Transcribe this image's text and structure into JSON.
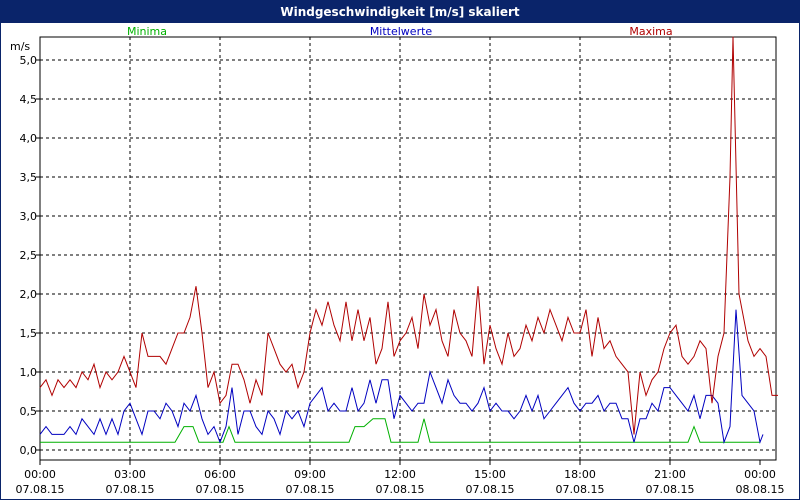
{
  "chart_data": {
    "type": "line",
    "title": "Windgeschwindigkeit [m/s] skaliert",
    "y_unit_label": "m/s",
    "ylim": [
      -0.1,
      5.5
    ],
    "y_ticks": [
      "0,0",
      "0,5",
      "1,0",
      "1,5",
      "2,0",
      "2,5",
      "3,0",
      "3,5",
      "4,0",
      "4,5",
      "5,0"
    ],
    "y_tick_values": [
      0.0,
      0.5,
      1.0,
      1.5,
      2.0,
      2.5,
      3.0,
      3.5,
      4.0,
      4.5,
      5.0
    ],
    "x_range_hours": [
      0,
      24
    ],
    "x_ticks": [
      {
        "hour": 0,
        "time": "00:00",
        "date": "07.08.15"
      },
      {
        "hour": 3,
        "time": "03:00",
        "date": "07.08.15"
      },
      {
        "hour": 6,
        "time": "06:00",
        "date": "07.08.15"
      },
      {
        "hour": 9,
        "time": "09:00",
        "date": "07.08.15"
      },
      {
        "hour": 12,
        "time": "12:00",
        "date": "07.08.15"
      },
      {
        "hour": 15,
        "time": "15:00",
        "date": "07.08.15"
      },
      {
        "hour": 18,
        "time": "18:00",
        "date": "07.08.15"
      },
      {
        "hour": 21,
        "time": "21:00",
        "date": "07.08.15"
      },
      {
        "hour": 24,
        "time": "00:00",
        "date": "08.08.15"
      }
    ],
    "grid": true,
    "series": [
      {
        "name": "Minima",
        "color": "#00b000",
        "points": [
          [
            0,
            0.1
          ],
          [
            4.5,
            0.1
          ],
          [
            4.8,
            0.3
          ],
          [
            5.1,
            0.3
          ],
          [
            5.3,
            0.1
          ],
          [
            6.1,
            0.1
          ],
          [
            6.3,
            0.3
          ],
          [
            6.5,
            0.1
          ],
          [
            10.3,
            0.1
          ],
          [
            10.5,
            0.3
          ],
          [
            10.8,
            0.3
          ],
          [
            11.1,
            0.4
          ],
          [
            11.5,
            0.4
          ],
          [
            11.7,
            0.1
          ],
          [
            12.6,
            0.1
          ],
          [
            12.8,
            0.4
          ],
          [
            13.0,
            0.1
          ],
          [
            21.6,
            0.1
          ],
          [
            21.8,
            0.3
          ],
          [
            22.0,
            0.1
          ],
          [
            24,
            0.1
          ]
        ]
      },
      {
        "name": "Mittelwerte",
        "color": "#0000c0",
        "points": [
          [
            0,
            0.2
          ],
          [
            0.2,
            0.3
          ],
          [
            0.4,
            0.2
          ],
          [
            0.6,
            0.2
          ],
          [
            0.8,
            0.2
          ],
          [
            1.0,
            0.3
          ],
          [
            1.2,
            0.2
          ],
          [
            1.4,
            0.4
          ],
          [
            1.6,
            0.3
          ],
          [
            1.8,
            0.2
          ],
          [
            2.0,
            0.4
          ],
          [
            2.2,
            0.2
          ],
          [
            2.4,
            0.4
          ],
          [
            2.6,
            0.2
          ],
          [
            2.8,
            0.5
          ],
          [
            3.0,
            0.6
          ],
          [
            3.2,
            0.4
          ],
          [
            3.4,
            0.2
          ],
          [
            3.6,
            0.5
          ],
          [
            3.8,
            0.5
          ],
          [
            4.0,
            0.4
          ],
          [
            4.2,
            0.6
          ],
          [
            4.4,
            0.5
          ],
          [
            4.6,
            0.3
          ],
          [
            4.8,
            0.6
          ],
          [
            5.0,
            0.5
          ],
          [
            5.2,
            0.7
          ],
          [
            5.4,
            0.4
          ],
          [
            5.6,
            0.2
          ],
          [
            5.8,
            0.3
          ],
          [
            6.0,
            0.1
          ],
          [
            6.2,
            0.3
          ],
          [
            6.4,
            0.8
          ],
          [
            6.6,
            0.2
          ],
          [
            6.8,
            0.5
          ],
          [
            7.0,
            0.5
          ],
          [
            7.2,
            0.3
          ],
          [
            7.4,
            0.2
          ],
          [
            7.6,
            0.5
          ],
          [
            7.8,
            0.4
          ],
          [
            8.0,
            0.2
          ],
          [
            8.2,
            0.5
          ],
          [
            8.4,
            0.4
          ],
          [
            8.6,
            0.5
          ],
          [
            8.8,
            0.3
          ],
          [
            9.0,
            0.6
          ],
          [
            9.2,
            0.7
          ],
          [
            9.4,
            0.8
          ],
          [
            9.6,
            0.5
          ],
          [
            9.8,
            0.6
          ],
          [
            10.0,
            0.5
          ],
          [
            10.2,
            0.5
          ],
          [
            10.4,
            0.8
          ],
          [
            10.6,
            0.5
          ],
          [
            10.8,
            0.6
          ],
          [
            11.0,
            0.9
          ],
          [
            11.2,
            0.6
          ],
          [
            11.4,
            0.9
          ],
          [
            11.6,
            0.9
          ],
          [
            11.8,
            0.4
          ],
          [
            12.0,
            0.7
          ],
          [
            12.2,
            0.6
          ],
          [
            12.4,
            0.5
          ],
          [
            12.6,
            0.6
          ],
          [
            12.8,
            0.6
          ],
          [
            13.0,
            1.0
          ],
          [
            13.2,
            0.8
          ],
          [
            13.4,
            0.6
          ],
          [
            13.6,
            0.9
          ],
          [
            13.8,
            0.7
          ],
          [
            14.0,
            0.6
          ],
          [
            14.2,
            0.6
          ],
          [
            14.4,
            0.5
          ],
          [
            14.6,
            0.6
          ],
          [
            14.8,
            0.8
          ],
          [
            15.0,
            0.5
          ],
          [
            15.2,
            0.6
          ],
          [
            15.4,
            0.5
          ],
          [
            15.6,
            0.5
          ],
          [
            15.8,
            0.4
          ],
          [
            16.0,
            0.5
          ],
          [
            16.2,
            0.7
          ],
          [
            16.4,
            0.5
          ],
          [
            16.6,
            0.7
          ],
          [
            16.8,
            0.4
          ],
          [
            17.0,
            0.5
          ],
          [
            17.2,
            0.6
          ],
          [
            17.4,
            0.7
          ],
          [
            17.6,
            0.8
          ],
          [
            17.8,
            0.6
          ],
          [
            18.0,
            0.5
          ],
          [
            18.2,
            0.6
          ],
          [
            18.4,
            0.6
          ],
          [
            18.6,
            0.7
          ],
          [
            18.8,
            0.5
          ],
          [
            19.0,
            0.6
          ],
          [
            19.2,
            0.6
          ],
          [
            19.4,
            0.4
          ],
          [
            19.6,
            0.4
          ],
          [
            19.8,
            0.1
          ],
          [
            20.0,
            0.4
          ],
          [
            20.2,
            0.4
          ],
          [
            20.4,
            0.6
          ],
          [
            20.6,
            0.5
          ],
          [
            20.8,
            0.8
          ],
          [
            21.0,
            0.8
          ],
          [
            21.2,
            0.7
          ],
          [
            21.4,
            0.6
          ],
          [
            21.6,
            0.5
          ],
          [
            21.8,
            0.7
          ],
          [
            22.0,
            0.4
          ],
          [
            22.2,
            0.7
          ],
          [
            22.4,
            0.7
          ],
          [
            22.6,
            0.6
          ],
          [
            22.8,
            0.1
          ],
          [
            23.0,
            0.3
          ],
          [
            23.2,
            1.8
          ],
          [
            23.4,
            0.7
          ],
          [
            23.6,
            0.6
          ],
          [
            23.8,
            0.5
          ],
          [
            24.0,
            0.1
          ],
          [
            24.1,
            0.2
          ]
        ]
      },
      {
        "name": "Maxima",
        "color": "#b00000",
        "points": [
          [
            0,
            0.8
          ],
          [
            0.2,
            0.9
          ],
          [
            0.4,
            0.7
          ],
          [
            0.6,
            0.9
          ],
          [
            0.8,
            0.8
          ],
          [
            1.0,
            0.9
          ],
          [
            1.2,
            0.8
          ],
          [
            1.4,
            1.0
          ],
          [
            1.6,
            0.9
          ],
          [
            1.8,
            1.1
          ],
          [
            2.0,
            0.8
          ],
          [
            2.2,
            1.0
          ],
          [
            2.4,
            0.9
          ],
          [
            2.6,
            1.0
          ],
          [
            2.8,
            1.2
          ],
          [
            3.0,
            1.0
          ],
          [
            3.2,
            0.8
          ],
          [
            3.4,
            1.5
          ],
          [
            3.6,
            1.2
          ],
          [
            3.8,
            1.2
          ],
          [
            4.0,
            1.2
          ],
          [
            4.2,
            1.1
          ],
          [
            4.4,
            1.3
          ],
          [
            4.6,
            1.5
          ],
          [
            4.8,
            1.5
          ],
          [
            5.0,
            1.7
          ],
          [
            5.2,
            2.1
          ],
          [
            5.4,
            1.5
          ],
          [
            5.6,
            0.8
          ],
          [
            5.8,
            1.0
          ],
          [
            6.0,
            0.6
          ],
          [
            6.2,
            0.7
          ],
          [
            6.4,
            1.1
          ],
          [
            6.6,
            1.1
          ],
          [
            6.8,
            0.9
          ],
          [
            7.0,
            0.6
          ],
          [
            7.2,
            0.9
          ],
          [
            7.4,
            0.7
          ],
          [
            7.6,
            1.5
          ],
          [
            7.8,
            1.3
          ],
          [
            8.0,
            1.1
          ],
          [
            8.2,
            1.0
          ],
          [
            8.4,
            1.1
          ],
          [
            8.6,
            0.8
          ],
          [
            8.8,
            1.0
          ],
          [
            9.0,
            1.5
          ],
          [
            9.2,
            1.8
          ],
          [
            9.4,
            1.6
          ],
          [
            9.6,
            1.9
          ],
          [
            9.8,
            1.6
          ],
          [
            10.0,
            1.4
          ],
          [
            10.2,
            1.9
          ],
          [
            10.4,
            1.4
          ],
          [
            10.6,
            1.8
          ],
          [
            10.8,
            1.4
          ],
          [
            11.0,
            1.7
          ],
          [
            11.2,
            1.1
          ],
          [
            11.4,
            1.3
          ],
          [
            11.6,
            1.9
          ],
          [
            11.8,
            1.2
          ],
          [
            12.0,
            1.4
          ],
          [
            12.2,
            1.5
          ],
          [
            12.4,
            1.7
          ],
          [
            12.6,
            1.3
          ],
          [
            12.8,
            2.0
          ],
          [
            13.0,
            1.6
          ],
          [
            13.2,
            1.8
          ],
          [
            13.4,
            1.4
          ],
          [
            13.6,
            1.2
          ],
          [
            13.8,
            1.8
          ],
          [
            14.0,
            1.5
          ],
          [
            14.2,
            1.4
          ],
          [
            14.4,
            1.2
          ],
          [
            14.6,
            2.1
          ],
          [
            14.8,
            1.1
          ],
          [
            15.0,
            1.6
          ],
          [
            15.2,
            1.3
          ],
          [
            15.4,
            1.1
          ],
          [
            15.6,
            1.5
          ],
          [
            15.8,
            1.2
          ],
          [
            16.0,
            1.3
          ],
          [
            16.2,
            1.6
          ],
          [
            16.4,
            1.4
          ],
          [
            16.6,
            1.7
          ],
          [
            16.8,
            1.5
          ],
          [
            17.0,
            1.8
          ],
          [
            17.2,
            1.6
          ],
          [
            17.4,
            1.4
          ],
          [
            17.6,
            1.7
          ],
          [
            17.8,
            1.5
          ],
          [
            18.0,
            1.5
          ],
          [
            18.2,
            1.8
          ],
          [
            18.4,
            1.2
          ],
          [
            18.6,
            1.7
          ],
          [
            18.8,
            1.3
          ],
          [
            19.0,
            1.4
          ],
          [
            19.2,
            1.2
          ],
          [
            19.4,
            1.1
          ],
          [
            19.6,
            1.0
          ],
          [
            19.8,
            0.2
          ],
          [
            20.0,
            1.0
          ],
          [
            20.2,
            0.7
          ],
          [
            20.4,
            0.9
          ],
          [
            20.6,
            1.0
          ],
          [
            20.8,
            1.3
          ],
          [
            21.0,
            1.5
          ],
          [
            21.2,
            1.6
          ],
          [
            21.4,
            1.2
          ],
          [
            21.6,
            1.1
          ],
          [
            21.8,
            1.2
          ],
          [
            22.0,
            1.4
          ],
          [
            22.2,
            1.3
          ],
          [
            22.4,
            0.6
          ],
          [
            22.6,
            1.2
          ],
          [
            22.8,
            1.5
          ],
          [
            23.0,
            3.5
          ],
          [
            23.1,
            5.3
          ],
          [
            23.3,
            2.0
          ],
          [
            23.6,
            1.4
          ],
          [
            23.8,
            1.2
          ],
          [
            24.0,
            1.3
          ],
          [
            24.2,
            1.2
          ],
          [
            24.4,
            0.7
          ],
          [
            24.6,
            0.7
          ]
        ]
      }
    ]
  }
}
